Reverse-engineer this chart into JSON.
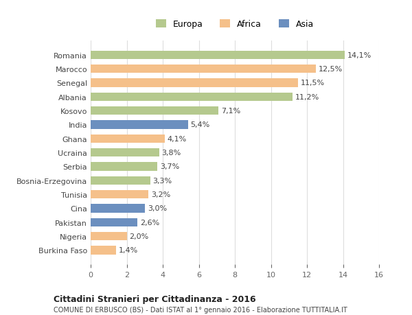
{
  "categories": [
    "Burkina Faso",
    "Nigeria",
    "Pakistan",
    "Cina",
    "Tunisia",
    "Bosnia-Erzegovina",
    "Serbia",
    "Ucraina",
    "Ghana",
    "India",
    "Kosovo",
    "Albania",
    "Senegal",
    "Marocco",
    "Romania"
  ],
  "values": [
    1.4,
    2.0,
    2.6,
    3.0,
    3.2,
    3.3,
    3.7,
    3.8,
    4.1,
    5.4,
    7.1,
    11.2,
    11.5,
    12.5,
    14.1
  ],
  "continents": [
    "Africa",
    "Africa",
    "Asia",
    "Asia",
    "Africa",
    "Europa",
    "Europa",
    "Europa",
    "Africa",
    "Asia",
    "Europa",
    "Europa",
    "Africa",
    "Africa",
    "Europa"
  ],
  "colors": {
    "Europa": "#b5c98e",
    "Africa": "#f5c08a",
    "Asia": "#6b8fbf"
  },
  "xlim": [
    0,
    16
  ],
  "xticks": [
    0,
    2,
    4,
    6,
    8,
    10,
    12,
    14,
    16
  ],
  "title": "Cittadini Stranieri per Cittadinanza - 2016",
  "subtitle": "COMUNE DI ERBUSCO (BS) - Dati ISTAT al 1° gennaio 2016 - Elaborazione TUTTITALIA.IT",
  "background_color": "#ffffff",
  "bar_height": 0.6,
  "grid_color": "#dddddd"
}
